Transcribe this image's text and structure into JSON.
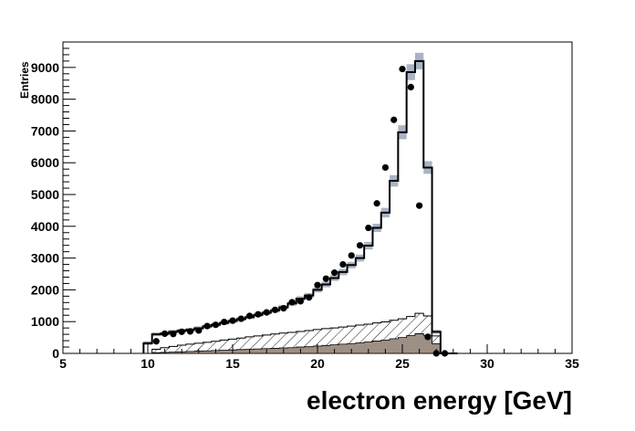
{
  "chart_data": {
    "type": "histogram",
    "title": "",
    "xlabel": "electron energy [GeV]",
    "ylabel": "Entries",
    "xlim": [
      5,
      35
    ],
    "ylim": [
      0,
      9800
    ],
    "x_ticks": [
      5,
      10,
      15,
      20,
      25,
      30,
      35
    ],
    "y_ticks": [
      0,
      1000,
      2000,
      3000,
      4000,
      5000,
      6000,
      7000,
      8000,
      9000
    ],
    "grid": false,
    "legend": "none",
    "bin_edges": [
      9.75,
      10.25,
      10.75,
      11.25,
      11.75,
      12.25,
      12.75,
      13.25,
      13.75,
      14.25,
      14.75,
      15.25,
      15.75,
      16.25,
      16.75,
      17.25,
      17.75,
      18.25,
      18.75,
      19.25,
      19.75,
      20.25,
      20.75,
      21.25,
      21.75,
      22.25,
      22.75,
      23.25,
      23.75,
      24.25,
      24.75,
      25.25,
      25.75,
      26.25,
      26.75,
      27.25,
      27.75,
      28.25
    ],
    "series": [
      {
        "role": "simulation_total",
        "style": "black-step-line",
        "color": "#000000",
        "values": [
          320,
          600,
          620,
          680,
          710,
          740,
          790,
          850,
          900,
          960,
          1020,
          1080,
          1140,
          1210,
          1280,
          1350,
          1450,
          1570,
          1720,
          1820,
          2000,
          2170,
          2370,
          2560,
          2780,
          3000,
          3390,
          3950,
          4430,
          5430,
          6960,
          8850,
          9200,
          5850,
          680,
          0,
          0
        ]
      },
      {
        "role": "simulation_uncertainty",
        "style": "grey-blue-band",
        "color": "#a9b4c6",
        "values": [
          60,
          60,
          60,
          60,
          60,
          60,
          60,
          60,
          60,
          60,
          60,
          60,
          60,
          60,
          60,
          70,
          70,
          70,
          80,
          80,
          80,
          90,
          90,
          100,
          100,
          110,
          120,
          130,
          150,
          180,
          220,
          250,
          260,
          200,
          60,
          0,
          0
        ]
      },
      {
        "role": "background_hatched",
        "style": "hatched",
        "color": "#000000",
        "values": [
          0,
          130,
          180,
          220,
          260,
          290,
          320,
          350,
          380,
          420,
          450,
          480,
          520,
          550,
          580,
          610,
          640,
          660,
          690,
          720,
          750,
          780,
          800,
          830,
          860,
          890,
          920,
          960,
          990,
          1040,
          1090,
          1160,
          1260,
          1180,
          550,
          0,
          0
        ]
      },
      {
        "role": "background_filled",
        "style": "filled",
        "color": "#9e8f84",
        "values": [
          0,
          20,
          30,
          40,
          50,
          60,
          70,
          80,
          90,
          100,
          110,
          120,
          130,
          140,
          150,
          160,
          170,
          180,
          200,
          210,
          230,
          250,
          270,
          290,
          310,
          330,
          360,
          390,
          420,
          460,
          500,
          560,
          620,
          570,
          300,
          0,
          0
        ]
      },
      {
        "role": "data",
        "style": "black-markers",
        "color": "#000000",
        "x": [
          10.5,
          11.0,
          11.5,
          12.0,
          12.5,
          13.0,
          13.5,
          14.0,
          14.5,
          15.0,
          15.5,
          16.0,
          16.5,
          17.0,
          17.5,
          18.0,
          18.5,
          19.0,
          19.5,
          20.0,
          20.5,
          21.0,
          21.5,
          22.0,
          22.5,
          23.0,
          23.5,
          24.0,
          24.5,
          25.0,
          25.5,
          26.0,
          26.5,
          27.0,
          27.5
        ],
        "y": [
          380,
          620,
          610,
          680,
          690,
          720,
          860,
          900,
          990,
          1030,
          1090,
          1180,
          1230,
          1290,
          1370,
          1420,
          1610,
          1640,
          1760,
          2150,
          2350,
          2540,
          2800,
          3080,
          3400,
          3950,
          4720,
          5850,
          7350,
          8950,
          8380,
          4650,
          520,
          0,
          0
        ]
      }
    ]
  }
}
